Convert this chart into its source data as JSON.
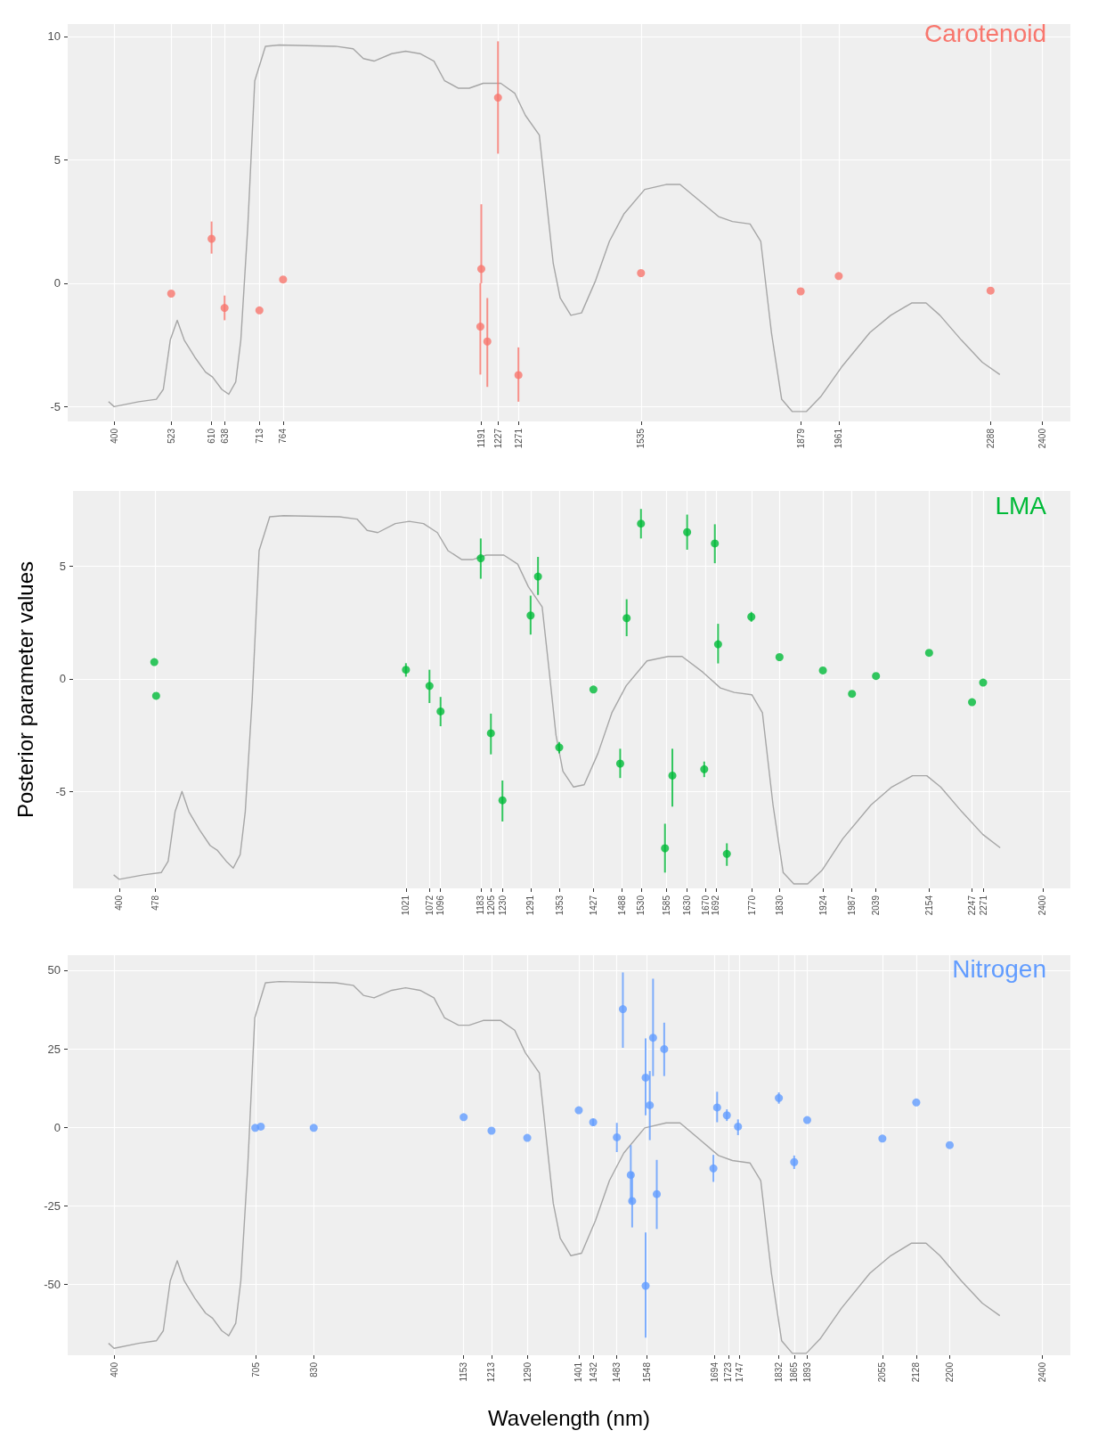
{
  "chart_data": [
    {
      "type": "scatter",
      "xlim": [
        300,
        2460
      ],
      "xticks": [
        400,
        523,
        610,
        638,
        713,
        764,
        1191,
        1227,
        1271,
        1535,
        1879,
        1961,
        2288,
        2400
      ],
      "ylim": [
        -5.6,
        10.5
      ],
      "yticks": [
        -5,
        0,
        5,
        10
      ],
      "grid": true,
      "legend": "top right",
      "series": [
        {
          "type": "line",
          "marker": "none",
          "color": "#a6a6a6",
          "x": [
            388,
            400,
            453,
            491,
            506,
            521,
            536,
            551,
            574,
            597,
            612,
            632,
            647,
            662,
            673,
            688,
            703,
            726,
            756,
            877,
            915,
            937,
            960,
            998,
            1028,
            1059,
            1089,
            1112,
            1142,
            1165,
            1195,
            1233,
            1263,
            1286,
            1316,
            1331,
            1346,
            1361,
            1384,
            1407,
            1437,
            1467,
            1498,
            1543,
            1589,
            1619,
            1664,
            1702,
            1732,
            1770,
            1793,
            1816,
            1838,
            1861,
            1891,
            1922,
            1967,
            2028,
            2073,
            2118,
            2149,
            2179,
            2225,
            2270,
            2308
          ],
          "values": [
            -4.8,
            -5.0,
            -4.8,
            -4.7,
            -4.3,
            -2.3,
            -1.5,
            -2.3,
            -3.0,
            -3.6,
            -3.8,
            -4.3,
            -4.5,
            -4.0,
            -2.3,
            2.3,
            8.2,
            9.6,
            9.65,
            9.6,
            9.5,
            9.1,
            9.0,
            9.3,
            9.4,
            9.3,
            9.0,
            8.2,
            7.9,
            7.9,
            8.1,
            8.1,
            7.7,
            6.8,
            6.0,
            3.4,
            0.8,
            -0.6,
            -1.3,
            -1.2,
            0.1,
            1.7,
            2.8,
            3.8,
            4.0,
            4.0,
            3.3,
            2.7,
            2.5,
            2.4,
            1.7,
            -2.0,
            -4.7,
            -5.2,
            -5.2,
            -4.6,
            -3.4,
            -2.0,
            -1.3,
            -0.8,
            -0.8,
            -1.3,
            -2.3,
            -3.2,
            -3.7
          ]
        },
        {
          "name": "Carotenoid",
          "marker": "circle",
          "color": "#f8766d",
          "x": [
            523,
            610,
            638,
            713,
            764,
            1191,
            1189,
            1204,
            1227,
            1271,
            1535,
            1879,
            1961,
            2288
          ],
          "values": [
            -0.42,
            1.8,
            -1.0,
            -1.1,
            0.15,
            0.58,
            -1.76,
            -2.36,
            7.52,
            -3.72,
            0.41,
            -0.33,
            0.29,
            -0.3
          ],
          "errors": [
            null,
            [
              1.2,
              2.5
            ],
            [
              -1.5,
              -0.5
            ],
            null,
            null,
            [
              0.0,
              3.2
            ],
            [
              -3.7,
              0.0
            ],
            [
              -4.2,
              -0.6
            ],
            [
              5.25,
              9.8
            ],
            [
              -4.8,
              -2.6
            ],
            null,
            null,
            null,
            null
          ]
        }
      ]
    },
    {
      "type": "scatter",
      "xlim": [
        300,
        2460
      ],
      "xticks": [
        400,
        478,
        1021,
        1072,
        1096,
        1183,
        1205,
        1230,
        1291,
        1353,
        1427,
        1488,
        1530,
        1585,
        1630,
        1670,
        1692,
        1770,
        1830,
        1924,
        1987,
        2039,
        2154,
        2247,
        2271,
        2400
      ],
      "ylim": [
        -9.3,
        8.35
      ],
      "yticks": [
        -5,
        0,
        5
      ],
      "ylabel": "Posterior parameter values",
      "grid": true,
      "legend": "top right",
      "series": [
        {
          "type": "line",
          "marker": "none",
          "color": "#a6a6a6",
          "x": [
            388,
            400,
            453,
            491,
            506,
            521,
            536,
            551,
            574,
            597,
            612,
            632,
            647,
            662,
            673,
            688,
            703,
            726,
            756,
            877,
            915,
            937,
            960,
            998,
            1028,
            1059,
            1089,
            1112,
            1142,
            1165,
            1195,
            1233,
            1263,
            1286,
            1316,
            1331,
            1346,
            1361,
            1384,
            1407,
            1437,
            1467,
            1498,
            1543,
            1589,
            1619,
            1664,
            1702,
            1732,
            1770,
            1793,
            1816,
            1838,
            1861,
            1891,
            1922,
            1967,
            2028,
            2073,
            2118,
            2149,
            2179,
            2225,
            2270,
            2308
          ],
          "values": [
            -8.7,
            -8.9,
            -8.7,
            -8.6,
            -8.1,
            -5.9,
            -5.0,
            -5.9,
            -6.7,
            -7.4,
            -7.6,
            -8.1,
            -8.4,
            -7.8,
            -5.9,
            -0.9,
            5.7,
            7.2,
            7.25,
            7.2,
            7.1,
            6.6,
            6.5,
            6.9,
            7.0,
            6.9,
            6.5,
            5.7,
            5.3,
            5.3,
            5.5,
            5.5,
            5.1,
            4.1,
            3.2,
            0.4,
            -2.5,
            -4.1,
            -4.8,
            -4.7,
            -3.3,
            -1.5,
            -0.3,
            0.8,
            1.0,
            1.0,
            0.3,
            -0.4,
            -0.6,
            -0.7,
            -1.5,
            -5.6,
            -8.6,
            -9.1,
            -9.1,
            -8.5,
            -7.1,
            -5.6,
            -4.8,
            -4.3,
            -4.3,
            -4.8,
            -5.9,
            -6.9,
            -7.5
          ]
        },
        {
          "name": "LMA",
          "marker": "circle",
          "color": "#00ba38",
          "x": [
            476,
            480,
            1021,
            1072,
            1096,
            1183,
            1205,
            1230,
            1291,
            1307,
            1353,
            1427,
            1485,
            1499,
            1530,
            1582,
            1598,
            1630,
            1667,
            1690,
            1697,
            1716,
            1769,
            1830,
            1924,
            1987,
            2039,
            2154,
            2247,
            2271
          ],
          "values": [
            0.75,
            -0.75,
            0.41,
            -0.31,
            -1.44,
            5.36,
            -2.41,
            -5.39,
            2.82,
            4.55,
            -3.04,
            -0.47,
            -3.76,
            2.7,
            6.9,
            -7.52,
            -4.29,
            6.52,
            -4.01,
            6.02,
            1.54,
            -7.77,
            2.76,
            0.97,
            0.38,
            -0.66,
            0.13,
            1.16,
            -1.03,
            -0.16
          ],
          "errors": [
            null,
            null,
            [
              0.1,
              0.7
            ],
            [
              -1.07,
              0.41
            ],
            [
              -2.1,
              -0.8
            ],
            [
              4.45,
              6.24
            ],
            [
              -3.35,
              -1.54
            ],
            [
              -6.33,
              -4.51
            ],
            [
              1.97,
              3.7
            ],
            [
              3.73,
              5.42
            ],
            [
              -3.3,
              -2.8
            ],
            null,
            [
              -4.4,
              -3.1
            ],
            [
              1.9,
              3.54
            ],
            [
              6.24,
              7.55
            ],
            [
              -8.6,
              -6.43
            ],
            [
              -5.67,
              -3.1
            ],
            [
              5.74,
              7.3
            ],
            [
              -4.36,
              -3.67
            ],
            [
              5.14,
              6.87
            ],
            [
              0.69,
              2.45
            ],
            [
              -8.3,
              -7.3
            ],
            [
              2.54,
              2.98
            ],
            null,
            null,
            null,
            null,
            null,
            null,
            null
          ]
        }
      ]
    },
    {
      "type": "scatter",
      "xlim": [
        300,
        2460
      ],
      "xticks": [
        400,
        705,
        830,
        1153,
        1213,
        1290,
        1401,
        1432,
        1483,
        1548,
        1694,
        1723,
        1747,
        1832,
        1865,
        1893,
        2055,
        2128,
        2200,
        2400
      ],
      "ylim": [
        -72.6,
        54.8
      ],
      "yticks": [
        -50,
        -25,
        0,
        25,
        50
      ],
      "xlabel": "Wavelength (nm)",
      "grid": true,
      "legend": "top right",
      "series": [
        {
          "type": "line",
          "marker": "none",
          "color": "#a6a6a6",
          "x": [
            388,
            400,
            453,
            491,
            506,
            521,
            536,
            551,
            574,
            597,
            612,
            632,
            647,
            662,
            673,
            688,
            703,
            726,
            756,
            877,
            915,
            937,
            960,
            998,
            1028,
            1059,
            1089,
            1112,
            1142,
            1165,
            1195,
            1233,
            1263,
            1286,
            1316,
            1331,
            1346,
            1361,
            1384,
            1407,
            1437,
            1467,
            1498,
            1543,
            1589,
            1619,
            1664,
            1702,
            1732,
            1770,
            1793,
            1816,
            1838,
            1861,
            1891,
            1922,
            1967,
            2028,
            2073,
            2118,
            2149,
            2179,
            2225,
            2270,
            2308
          ],
          "values": [
            -68.8,
            -70.4,
            -68.8,
            -68.0,
            -64.8,
            -48.9,
            -42.5,
            -48.9,
            -54.5,
            -59.2,
            -60.8,
            -64.8,
            -66.4,
            -62.4,
            -48.9,
            -12.2,
            34.8,
            46.0,
            46.4,
            46.0,
            45.2,
            42.0,
            41.2,
            43.6,
            44.4,
            43.6,
            41.2,
            34.8,
            32.5,
            32.5,
            34.0,
            34.0,
            30.9,
            23.7,
            17.3,
            -3.4,
            -24.2,
            -35.3,
            -40.9,
            -40.1,
            -29.7,
            -17.0,
            -8.2,
            -0.2,
            1.4,
            1.4,
            -4.2,
            -9.0,
            -10.6,
            -11.4,
            -17.0,
            -46.5,
            -68.0,
            -72.0,
            -72.0,
            -67.2,
            -57.6,
            -46.5,
            -40.9,
            -36.9,
            -36.9,
            -40.9,
            -48.9,
            -56.0,
            -60.0
          ]
        },
        {
          "name": "Nitrogen",
          "marker": "circle",
          "color": "#619cff",
          "x": [
            704,
            716,
            830,
            1153,
            1213,
            1290,
            1401,
            1432,
            1483,
            1496,
            1513,
            1516,
            1545,
            1545,
            1554,
            1561,
            1569,
            1585,
            1691,
            1699,
            1720,
            1744,
            1832,
            1865,
            1893,
            2055,
            2128,
            2200
          ],
          "values": [
            -0.2,
            0.2,
            -0.2,
            3.2,
            -1.1,
            -3.4,
            5.4,
            1.6,
            -3.2,
            37.6,
            -15.2,
            -23.5,
            15.8,
            -50.5,
            7.0,
            28.5,
            -21.3,
            24.9,
            -13.1,
            6.3,
            3.8,
            0.2,
            9.3,
            -11.1,
            2.3,
            -3.6,
            7.9,
            -5.7
          ],
          "errors": [
            null,
            null,
            null,
            null,
            null,
            null,
            null,
            [
              0.5,
              2.7
            ],
            [
              -7.9,
              1.4
            ],
            [
              25.3,
              49.3
            ],
            [
              -24,
              -5.7
            ],
            [
              -31.9,
              -14.3
            ],
            [
              3.8,
              28.3
            ],
            [
              -67,
              -33.5
            ],
            [
              -4.1,
              17.9
            ],
            [
              16.3,
              47.3
            ],
            [
              -32.4,
              -10.4
            ],
            [
              16.3,
              33.3
            ],
            [
              -17.4,
              -8.8
            ],
            [
              1.6,
              11.3
            ],
            [
              2.0,
              5.7
            ],
            [
              -2.5,
              2.5
            ],
            [
              7.5,
              11.1
            ],
            [
              -13.3,
              -9.0
            ],
            null,
            null,
            null,
            null
          ]
        }
      ]
    }
  ]
}
